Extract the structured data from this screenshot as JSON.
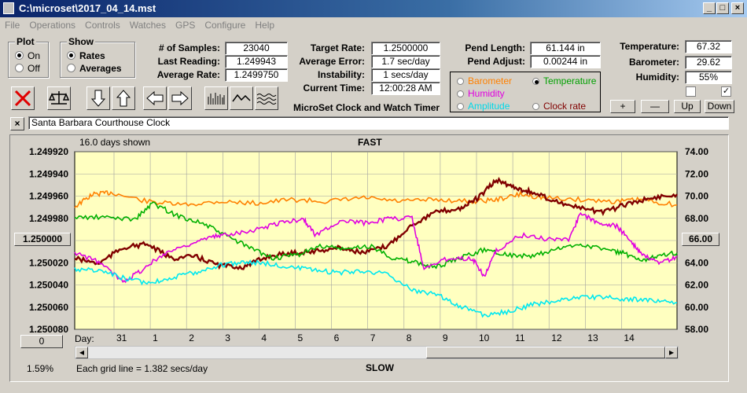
{
  "window": {
    "title": "C:\\microset\\2017_04_14.mst"
  },
  "menu": [
    "File",
    "Operations",
    "Controls",
    "Watches",
    "GPS",
    "Configure",
    "Help"
  ],
  "plot_group": {
    "label": "Plot",
    "options": [
      "On",
      "Off"
    ],
    "selected": "On"
  },
  "show_group": {
    "label": "Show",
    "options": [
      "Rates",
      "Averages"
    ],
    "selected": "Rates"
  },
  "stats": {
    "samples_label": "# of Samples:",
    "samples": "23040",
    "last_reading_label": "Last Reading:",
    "last_reading": "1.249943",
    "avg_rate_label": "Average Rate:",
    "avg_rate": "1.2499750",
    "target_rate_label": "Target Rate:",
    "target_rate": "1.2500000",
    "avg_error_label": "Average Error:",
    "avg_error": "1.7 sec/day",
    "instability_label": "Instability:",
    "instability": "1 secs/day",
    "current_time_label": "Current Time:",
    "current_time": "12:00:28 AM",
    "pend_length_label": "Pend Length:",
    "pend_length": "61.144 in",
    "pend_adjust_label": "Pend Adjust:",
    "pend_adjust": "0.00244 in",
    "temperature_label": "Temperature:",
    "temperature": "67.32",
    "barometer_label": "Barometer:",
    "barometer": "29.62",
    "humidity_label": "Humidity:",
    "humidity": "55%"
  },
  "app_name": "MicroSet Clock and Watch Timer",
  "series_selector": {
    "items": [
      {
        "label": "Barometer",
        "color": "#ff8000",
        "selected": false
      },
      {
        "label": "Temperature",
        "color": "#00a000",
        "selected": true
      },
      {
        "label": "Humidity",
        "color": "#e000e0",
        "selected": false
      },
      {
        "label": "Clock rate",
        "color": "#800000",
        "selected": false
      },
      {
        "label": "Amplitude",
        "color": "#00e0e0",
        "selected": false
      }
    ]
  },
  "right_buttons": {
    "plus": "+",
    "minus": "—",
    "up": "Up",
    "down": "Down"
  },
  "clock_name": "Santa Barbara Courthouse Clock",
  "chart_data": {
    "type": "line",
    "top_label": "FAST",
    "bottom_label": "SLOW",
    "days_shown": "16.0 days shown",
    "grid_note": "Each grid line = 1.382 secs/day",
    "day_prefix": "Day:",
    "days": [
      "31",
      "1",
      "2",
      "3",
      "4",
      "5",
      "6",
      "7",
      "8",
      "9",
      "10",
      "11",
      "12",
      "13",
      "14"
    ],
    "left_ticks": [
      "1.249920",
      "1.249940",
      "1.249960",
      "1.249980",
      "1.250000",
      "1.250020",
      "1.250040",
      "1.250060",
      "1.250080"
    ],
    "left_button": "1.250000",
    "right_ticks": [
      "74.00",
      "72.00",
      "70.00",
      "68.00",
      "66.00",
      "64.00",
      "62.00",
      "60.00",
      "58.00"
    ],
    "right_button": "66.00",
    "bottom_left_button": "0",
    "percent": "1.59%",
    "background": "#ffffc0",
    "series": [
      {
        "color": "#ff8000",
        "pts": [
          [
            0,
            0.69
          ],
          [
            0.03,
            0.76
          ],
          [
            0.06,
            0.77
          ],
          [
            0.12,
            0.72
          ],
          [
            0.18,
            0.7
          ],
          [
            0.24,
            0.72
          ],
          [
            0.3,
            0.71
          ],
          [
            0.36,
            0.73
          ],
          [
            0.42,
            0.72
          ],
          [
            0.48,
            0.74
          ],
          [
            0.54,
            0.72
          ],
          [
            0.6,
            0.73
          ],
          [
            0.66,
            0.72
          ],
          [
            0.7,
            0.73
          ],
          [
            0.74,
            0.76
          ],
          [
            0.78,
            0.74
          ],
          [
            0.84,
            0.73
          ],
          [
            0.9,
            0.72
          ],
          [
            0.94,
            0.73
          ],
          [
            1.0,
            0.7
          ]
        ]
      },
      {
        "color": "#800000",
        "pts": [
          [
            0,
            0.4
          ],
          [
            0.04,
            0.37
          ],
          [
            0.08,
            0.46
          ],
          [
            0.12,
            0.48
          ],
          [
            0.16,
            0.4
          ],
          [
            0.2,
            0.41
          ],
          [
            0.24,
            0.36
          ],
          [
            0.28,
            0.35
          ],
          [
            0.32,
            0.41
          ],
          [
            0.36,
            0.43
          ],
          [
            0.4,
            0.44
          ],
          [
            0.44,
            0.46
          ],
          [
            0.48,
            0.43
          ],
          [
            0.52,
            0.47
          ],
          [
            0.56,
            0.59
          ],
          [
            0.6,
            0.66
          ],
          [
            0.64,
            0.68
          ],
          [
            0.67,
            0.74
          ],
          [
            0.7,
            0.84
          ],
          [
            0.73,
            0.8
          ],
          [
            0.76,
            0.77
          ],
          [
            0.8,
            0.72
          ],
          [
            0.84,
            0.68
          ],
          [
            0.88,
            0.66
          ],
          [
            0.92,
            0.71
          ],
          [
            0.96,
            0.74
          ],
          [
            1.0,
            0.76
          ]
        ]
      },
      {
        "color": "#00b000",
        "pts": [
          [
            0,
            0.63
          ],
          [
            0.05,
            0.63
          ],
          [
            0.1,
            0.62
          ],
          [
            0.13,
            0.71
          ],
          [
            0.17,
            0.64
          ],
          [
            0.21,
            0.6
          ],
          [
            0.25,
            0.53
          ],
          [
            0.29,
            0.46
          ],
          [
            0.33,
            0.4
          ],
          [
            0.37,
            0.42
          ],
          [
            0.41,
            0.47
          ],
          [
            0.45,
            0.45
          ],
          [
            0.49,
            0.47
          ],
          [
            0.53,
            0.4
          ],
          [
            0.56,
            0.38
          ],
          [
            0.6,
            0.35
          ],
          [
            0.64,
            0.4
          ],
          [
            0.68,
            0.45
          ],
          [
            0.72,
            0.42
          ],
          [
            0.76,
            0.41
          ],
          [
            0.8,
            0.45
          ],
          [
            0.84,
            0.48
          ],
          [
            0.88,
            0.45
          ],
          [
            0.91,
            0.43
          ],
          [
            0.94,
            0.38
          ],
          [
            0.97,
            0.42
          ],
          [
            1.0,
            0.43
          ]
        ]
      },
      {
        "color": "#e000e0",
        "pts": [
          [
            0,
            0.43
          ],
          [
            0.04,
            0.38
          ],
          [
            0.08,
            0.27
          ],
          [
            0.11,
            0.33
          ],
          [
            0.15,
            0.43
          ],
          [
            0.19,
            0.48
          ],
          [
            0.23,
            0.52
          ],
          [
            0.26,
            0.54
          ],
          [
            0.3,
            0.56
          ],
          [
            0.34,
            0.6
          ],
          [
            0.38,
            0.62
          ],
          [
            0.4,
            0.53
          ],
          [
            0.44,
            0.61
          ],
          [
            0.48,
            0.6
          ],
          [
            0.52,
            0.62
          ],
          [
            0.56,
            0.63
          ],
          [
            0.58,
            0.34
          ],
          [
            0.62,
            0.4
          ],
          [
            0.66,
            0.4
          ],
          [
            0.68,
            0.3
          ],
          [
            0.7,
            0.44
          ],
          [
            0.74,
            0.53
          ],
          [
            0.78,
            0.51
          ],
          [
            0.82,
            0.51
          ],
          [
            0.84,
            0.65
          ],
          [
            0.87,
            0.6
          ],
          [
            0.9,
            0.58
          ],
          [
            0.92,
            0.51
          ],
          [
            0.94,
            0.43
          ],
          [
            0.97,
            0.37
          ],
          [
            1.0,
            0.41
          ]
        ]
      },
      {
        "color": "#00e8f0",
        "pts": [
          [
            0,
            0.34
          ],
          [
            0.04,
            0.33
          ],
          [
            0.08,
            0.29
          ],
          [
            0.12,
            0.26
          ],
          [
            0.16,
            0.29
          ],
          [
            0.2,
            0.32
          ],
          [
            0.24,
            0.36
          ],
          [
            0.28,
            0.38
          ],
          [
            0.32,
            0.37
          ],
          [
            0.36,
            0.35
          ],
          [
            0.4,
            0.33
          ],
          [
            0.44,
            0.32
          ],
          [
            0.48,
            0.33
          ],
          [
            0.52,
            0.31
          ],
          [
            0.56,
            0.22
          ],
          [
            0.6,
            0.2
          ],
          [
            0.64,
            0.13
          ],
          [
            0.68,
            0.08
          ],
          [
            0.72,
            0.1
          ],
          [
            0.76,
            0.14
          ],
          [
            0.8,
            0.16
          ],
          [
            0.84,
            0.18
          ],
          [
            0.88,
            0.18
          ],
          [
            0.92,
            0.17
          ],
          [
            0.96,
            0.16
          ],
          [
            1.0,
            0.15
          ]
        ]
      }
    ]
  }
}
